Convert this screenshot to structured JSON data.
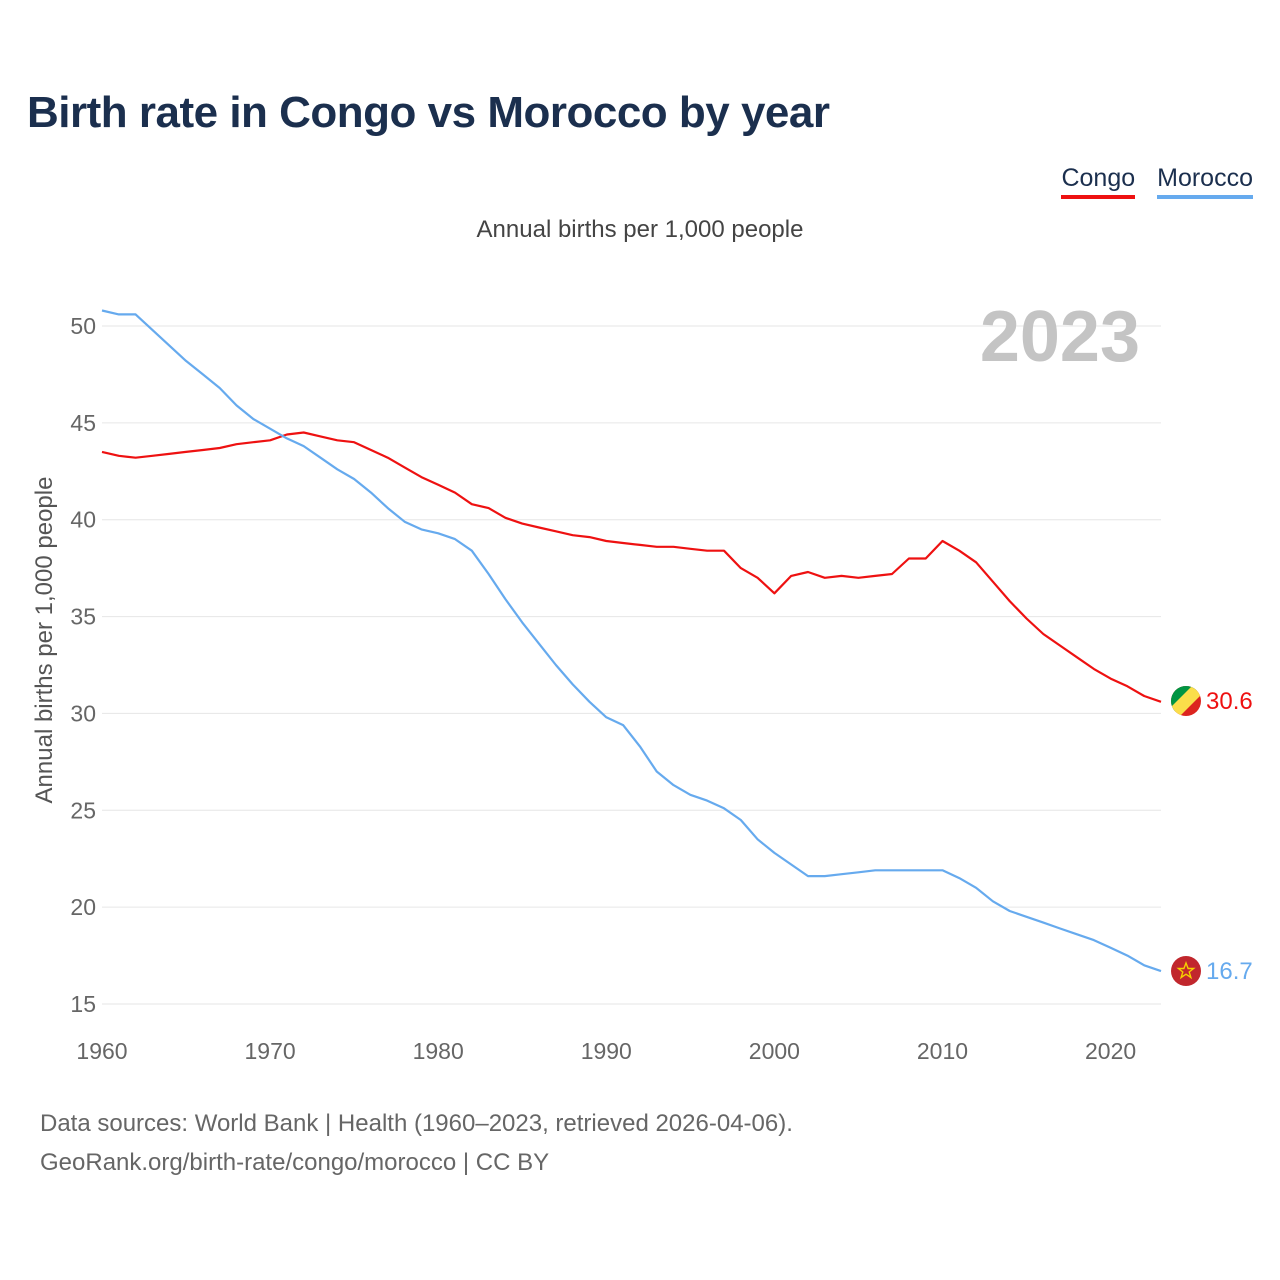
{
  "title": "Birth rate in Congo vs Morocco by year",
  "subtitle": "Annual births per 1,000 people",
  "legend": [
    {
      "name": "Congo",
      "color": "#ee1111"
    },
    {
      "name": "Morocco",
      "color": "#66aaee"
    }
  ],
  "year_watermark": "2023",
  "footer": {
    "line1": "Data sources: World Bank | Health (1960–2023, retrieved 2026-04-06).",
    "line2": "GeoRank.org/birth-rate/congo/morocco | CC BY"
  },
  "chart_data": {
    "type": "line",
    "title": "Birth rate in Congo vs Morocco by year",
    "xlabel": "",
    "ylabel": "Annual births per 1,000 people",
    "xlim": [
      1960,
      2023
    ],
    "ylim": [
      15,
      51
    ],
    "x_ticks": [
      1960,
      1970,
      1980,
      1990,
      2000,
      2010,
      2020
    ],
    "y_ticks": [
      15,
      20,
      25,
      30,
      35,
      40,
      45,
      50
    ],
    "grid": "horizontal",
    "legend_position": "top-right",
    "x": [
      1960,
      1961,
      1962,
      1963,
      1964,
      1965,
      1966,
      1967,
      1968,
      1969,
      1970,
      1971,
      1972,
      1973,
      1974,
      1975,
      1976,
      1977,
      1978,
      1979,
      1980,
      1981,
      1982,
      1983,
      1984,
      1985,
      1986,
      1987,
      1988,
      1989,
      1990,
      1991,
      1992,
      1993,
      1994,
      1995,
      1996,
      1997,
      1998,
      1999,
      2000,
      2001,
      2002,
      2003,
      2004,
      2005,
      2006,
      2007,
      2008,
      2009,
      2010,
      2011,
      2012,
      2013,
      2014,
      2015,
      2016,
      2017,
      2018,
      2019,
      2020,
      2021,
      2022,
      2023
    ],
    "series": [
      {
        "name": "Congo",
        "color": "#ee1111",
        "end_label": "30.6",
        "values": [
          43.5,
          43.3,
          43.2,
          43.3,
          43.4,
          43.5,
          43.6,
          43.7,
          43.9,
          44.0,
          44.1,
          44.4,
          44.5,
          44.3,
          44.1,
          44.0,
          43.6,
          43.2,
          42.7,
          42.2,
          41.8,
          41.4,
          40.8,
          40.6,
          40.1,
          39.8,
          39.6,
          39.4,
          39.2,
          39.1,
          38.9,
          38.8,
          38.7,
          38.6,
          38.6,
          38.5,
          38.4,
          38.4,
          37.5,
          37.0,
          36.2,
          37.1,
          37.3,
          37.0,
          37.1,
          37.0,
          37.1,
          37.2,
          38.0,
          38.0,
          38.9,
          38.4,
          37.8,
          36.8,
          35.8,
          34.9,
          34.1,
          33.5,
          32.9,
          32.3,
          31.8,
          31.4,
          30.9,
          30.6
        ]
      },
      {
        "name": "Morocco",
        "color": "#66aaee",
        "end_label": "16.7",
        "values": [
          50.8,
          50.6,
          50.6,
          49.8,
          49.0,
          48.2,
          47.5,
          46.8,
          45.9,
          45.2,
          44.7,
          44.2,
          43.8,
          43.2,
          42.6,
          42.1,
          41.4,
          40.6,
          39.9,
          39.5,
          39.3,
          39.0,
          38.4,
          37.2,
          35.9,
          34.7,
          33.6,
          32.5,
          31.5,
          30.6,
          29.8,
          29.4,
          28.3,
          27.0,
          26.3,
          25.8,
          25.5,
          25.1,
          24.5,
          23.5,
          22.8,
          22.2,
          21.6,
          21.6,
          21.7,
          21.8,
          21.9,
          21.9,
          21.9,
          21.9,
          21.9,
          21.5,
          21.0,
          20.3,
          19.8,
          19.5,
          19.2,
          18.9,
          18.6,
          18.3,
          17.9,
          17.5,
          17.0,
          16.7
        ]
      }
    ]
  }
}
